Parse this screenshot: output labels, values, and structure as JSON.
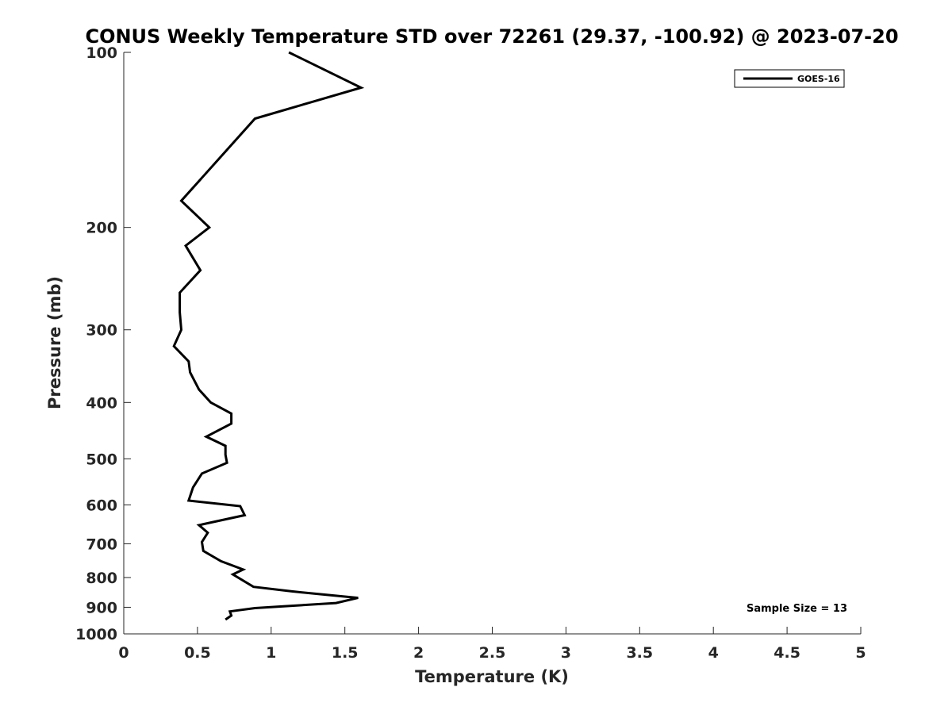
{
  "chart_data": {
    "type": "line",
    "title": "CONUS Weekly Temperature STD over 72261 (29.37, -100.92) @ 2023-07-20",
    "xlabel": "Temperature (K)",
    "ylabel": "Pressure (mb)",
    "xlim": [
      0,
      5
    ],
    "ylim": [
      100,
      1000
    ],
    "y_scale": "log",
    "y_reversed": true,
    "x_ticks": [
      "0",
      "0.5",
      "1",
      "1.5",
      "2",
      "2.5",
      "3",
      "3.5",
      "4",
      "4.5",
      "5"
    ],
    "y_ticks": [
      "100",
      "200",
      "300",
      "400",
      "500",
      "600",
      "700",
      "800",
      "900",
      "1000"
    ],
    "grid": false,
    "legend_position": "top-right",
    "annotation": "Sample Size = 13",
    "series": [
      {
        "name": "GOES-16",
        "color": "#000000",
        "points": [
          [
            1.12,
            100
          ],
          [
            1.61,
            115
          ],
          [
            0.89,
            130
          ],
          [
            0.64,
            153
          ],
          [
            0.39,
            180
          ],
          [
            0.58,
            200
          ],
          [
            0.42,
            215
          ],
          [
            0.52,
            237
          ],
          [
            0.38,
            259
          ],
          [
            0.38,
            280
          ],
          [
            0.39,
            300
          ],
          [
            0.34,
            320
          ],
          [
            0.44,
            340
          ],
          [
            0.45,
            355
          ],
          [
            0.51,
            380
          ],
          [
            0.59,
            400
          ],
          [
            0.73,
            418
          ],
          [
            0.73,
            435
          ],
          [
            0.56,
            458
          ],
          [
            0.69,
            475
          ],
          [
            0.69,
            492
          ],
          [
            0.7,
            508
          ],
          [
            0.53,
            530
          ],
          [
            0.47,
            560
          ],
          [
            0.44,
            590
          ],
          [
            0.79,
            603
          ],
          [
            0.82,
            625
          ],
          [
            0.51,
            650
          ],
          [
            0.57,
            670
          ],
          [
            0.53,
            695
          ],
          [
            0.54,
            720
          ],
          [
            0.66,
            750
          ],
          [
            0.81,
            775
          ],
          [
            0.74,
            790
          ],
          [
            0.88,
            830
          ],
          [
            1.14,
            845
          ],
          [
            1.3,
            853
          ],
          [
            1.59,
            867
          ],
          [
            1.44,
            885
          ],
          [
            0.89,
            903
          ],
          [
            0.72,
            915
          ],
          [
            0.73,
            930
          ],
          [
            0.69,
            945
          ]
        ]
      }
    ]
  }
}
